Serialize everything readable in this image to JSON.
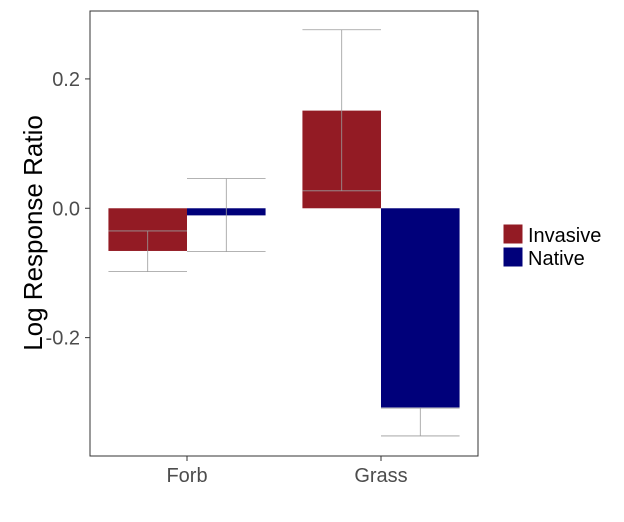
{
  "chart_data": {
    "type": "bar",
    "title": "",
    "xlabel": "",
    "ylabel": "Log Response Ratio",
    "categories": [
      "Forb",
      "Grass"
    ],
    "series": [
      {
        "name": "Invasive",
        "color": "#931b24",
        "values": [
          -0.066,
          0.151
        ],
        "error_low": [
          -0.098,
          0.027
        ],
        "error_high": [
          -0.035,
          0.276
        ]
      },
      {
        "name": "Native",
        "color": "#00007a",
        "values": [
          -0.011,
          -0.308
        ],
        "error_low": [
          -0.067,
          -0.352
        ],
        "error_high": [
          0.046,
          -0.309
        ]
      }
    ],
    "yticks": [
      0.2,
      0.0,
      -0.2
    ],
    "ytick_labels": [
      "0.2",
      "0.0",
      "-0.2"
    ],
    "ylim": [
      -0.383,
      0.305
    ],
    "grid": false,
    "legend": "right"
  }
}
